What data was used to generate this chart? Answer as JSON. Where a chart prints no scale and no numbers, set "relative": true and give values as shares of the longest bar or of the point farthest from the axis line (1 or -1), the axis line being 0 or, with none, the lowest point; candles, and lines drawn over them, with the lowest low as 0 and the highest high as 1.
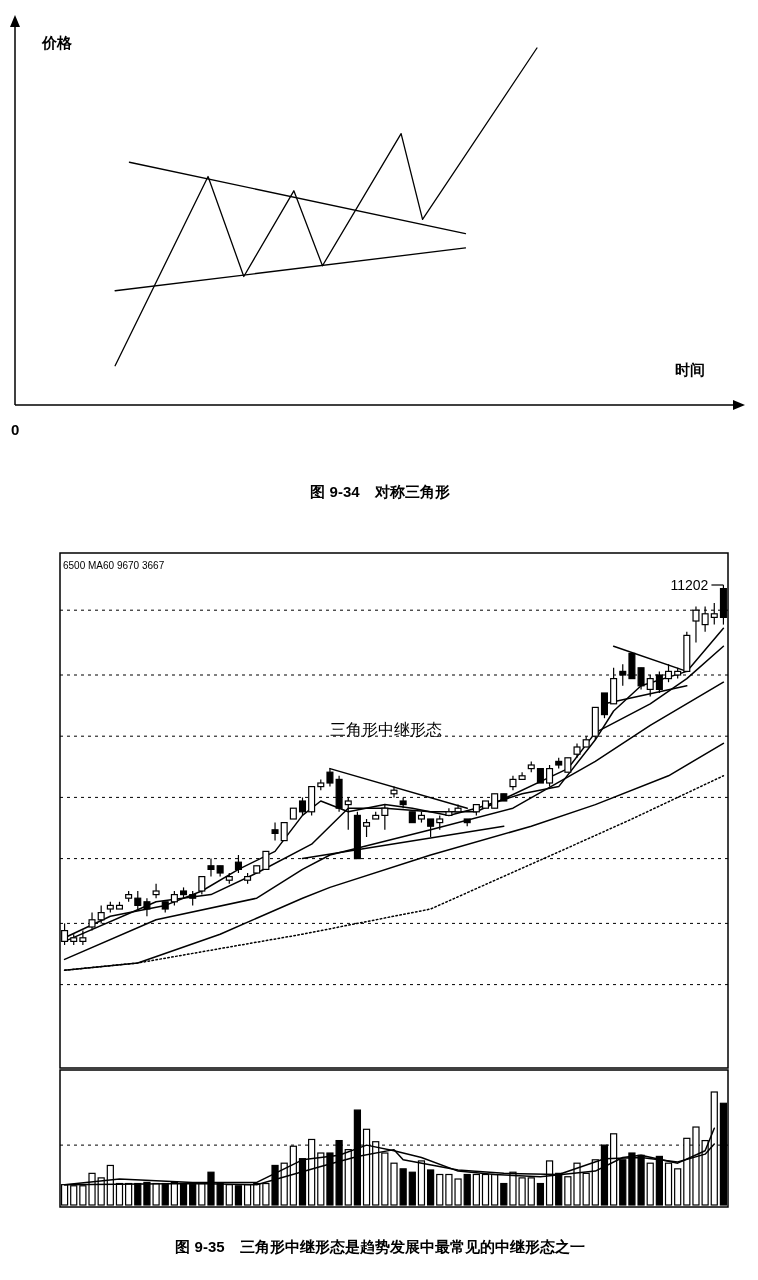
{
  "chart_data": [
    {
      "type": "line",
      "relative": true,
      "title": "图 9-34　对称三角形",
      "xlabel": "时间",
      "ylabel": "价格",
      "annotations": [
        "0"
      ],
      "categories": [
        null,
        null,
        null,
        null,
        null,
        null,
        null,
        null,
        null,
        null,
        null,
        null,
        null,
        null,
        null,
        null,
        null,
        null,
        null,
        null,
        null,
        null,
        null,
        null,
        null,
        null,
        null,
        null,
        null,
        null,
        null,
        null,
        null,
        null,
        null,
        null,
        null,
        null,
        null,
        null,
        null,
        null,
        null,
        null,
        null,
        null,
        null,
        null,
        null,
        null,
        null,
        null,
        null,
        null,
        null,
        null,
        null,
        null,
        null,
        null,
        null,
        null,
        null,
        null,
        null,
        null,
        null,
        null,
        null,
        null,
        null,
        null,
        null,
        null,
        null,
        null,
        null,
        null,
        null,
        null,
        null,
        null,
        null,
        null,
        null,
        null,
        null,
        null,
        null,
        null,
        null,
        null,
        null,
        null,
        null,
        null,
        null,
        null,
        null,
        null,
        null
      ],
      "series": [
        {
          "color": "#000000",
          "values": [
            null,
            null,
            null,
            null,
            null,
            null,
            null,
            null,
            null,
            null,
            null,
            null,
            null,
            null,
            0.11,
            null,
            null,
            null,
            null,
            null,
            null,
            null,
            null,
            null,
            null,
            null,
            null,
            0.64,
            null,
            null,
            null,
            null,
            0.36,
            null,
            null,
            null,
            null,
            null,
            null,
            0.6,
            null,
            null,
            null,
            0.39,
            null,
            null,
            null,
            null,
            null,
            null,
            null,
            null,
            null,
            null,
            0.76,
            null,
            null,
            0.52,
            null,
            null,
            null,
            null,
            null,
            null,
            null,
            null,
            null,
            null,
            null,
            null,
            null,
            null,
            null,
            1,
            null,
            null,
            null,
            null,
            null,
            null,
            null,
            null,
            null,
            null,
            null,
            null,
            null,
            null,
            null,
            null,
            null,
            null,
            null,
            null,
            null,
            null,
            null,
            null,
            null,
            null,
            null
          ]
        },
        {
          "color": "#000000",
          "values": [
            null,
            null,
            null,
            null,
            null,
            null,
            null,
            null,
            null,
            null,
            null,
            null,
            null,
            null,
            null,
            null,
            0.68,
            null,
            null,
            null,
            null,
            null,
            null,
            null,
            null,
            null,
            null,
            null,
            null,
            null,
            null,
            null,
            null,
            null,
            null,
            null,
            null,
            null,
            null,
            null,
            null,
            null,
            null,
            null,
            null,
            null,
            null,
            null,
            null,
            null,
            null,
            null,
            null,
            null,
            null,
            null,
            null,
            null,
            null,
            null,
            null,
            null,
            null,
            0.48,
            null,
            null,
            null,
            null,
            null,
            null,
            null,
            null,
            null,
            null,
            null,
            null,
            null,
            null,
            null,
            null,
            null,
            null,
            null,
            null,
            null,
            null,
            null,
            null,
            null,
            null,
            null,
            null,
            null,
            null,
            null,
            null,
            null,
            null,
            null,
            null,
            null
          ]
        },
        {
          "color": "#000000",
          "values": [
            null,
            null,
            null,
            null,
            null,
            null,
            null,
            null,
            null,
            null,
            null,
            null,
            null,
            null,
            0.32,
            null,
            null,
            null,
            null,
            null,
            null,
            null,
            null,
            null,
            null,
            null,
            null,
            null,
            null,
            null,
            null,
            null,
            null,
            null,
            null,
            null,
            null,
            null,
            null,
            null,
            null,
            null,
            null,
            null,
            null,
            null,
            null,
            null,
            null,
            null,
            null,
            null,
            null,
            null,
            null,
            null,
            null,
            null,
            null,
            null,
            null,
            null,
            null,
            0.44,
            null,
            null,
            null,
            null,
            null,
            null,
            null,
            null,
            null,
            null,
            null,
            null,
            null,
            null,
            null,
            null,
            null,
            null,
            null,
            null,
            null,
            null,
            null,
            null,
            null,
            null,
            null,
            null,
            null,
            null,
            null,
            null,
            null,
            null,
            null,
            null,
            null
          ]
        }
      ]
    },
    {
      "type": "candlestick",
      "relative": true,
      "ref_lines": [
        {
          "axis": "y",
          "value": 0.93,
          "line_style": "dashed",
          "color": "#000000"
        },
        {
          "axis": "y",
          "value": 0.75,
          "line_style": "dashed",
          "color": "#000000"
        },
        {
          "axis": "y",
          "value": 0.58,
          "line_style": "dashed",
          "color": "#000000"
        },
        {
          "axis": "y",
          "value": 0.41,
          "line_style": "dashed",
          "color": "#000000"
        },
        {
          "axis": "y",
          "value": 0.24,
          "line_style": "dashed",
          "color": "#000000"
        },
        {
          "axis": "y",
          "value": 0.06,
          "line_style": "dashed",
          "color": "#000000"
        },
        {
          "axis": "y",
          "value": -0.11,
          "line_style": "dashed",
          "color": "#000000"
        }
      ],
      "annotations": [
        "6500 MA60 9670 3667",
        "三角形中继形态",
        "11202"
      ],
      "categories": [
        null,
        null,
        null,
        null,
        null,
        null,
        null,
        null,
        null,
        null,
        null,
        null,
        null,
        null,
        null,
        null,
        null,
        null,
        null,
        null,
        null,
        null,
        null,
        null,
        null,
        null,
        null,
        null,
        null,
        null,
        null,
        null,
        null,
        null,
        null,
        null,
        null,
        null,
        null,
        null,
        null,
        null,
        null,
        null,
        null,
        null,
        null,
        null,
        null,
        null,
        null,
        null,
        null,
        null,
        null,
        null,
        null,
        null,
        null,
        null,
        null,
        null,
        null,
        null,
        null,
        null,
        null,
        null,
        null,
        null,
        null,
        null,
        null
      ],
      "ohlc": [
        [
          0.01,
          0.06,
          0,
          0.04
        ],
        [
          0.01,
          0.03,
          0,
          0.02
        ],
        [
          0.01,
          0.04,
          0,
          0.02
        ],
        [
          0.05,
          0.09,
          0.04,
          0.07
        ],
        [
          0.07,
          0.11,
          0.06,
          0.09
        ],
        [
          0.1,
          0.12,
          0.09,
          0.11
        ],
        [
          0.1,
          0.12,
          0.1,
          0.11
        ],
        [
          0.13,
          0.15,
          0.12,
          0.14
        ],
        [
          0.13,
          0.15,
          0.1,
          0.11
        ],
        [
          0.12,
          0.13,
          0.08,
          0.1
        ],
        [
          0.14,
          0.17,
          0.13,
          0.15
        ],
        [
          0.12,
          0.12,
          0.09,
          0.1
        ],
        [
          0.12,
          0.15,
          0.11,
          0.14
        ],
        [
          0.15,
          0.16,
          0.13,
          0.14
        ],
        [
          0.14,
          0.15,
          0.11,
          0.13
        ],
        [
          0.15,
          0.19,
          0.14,
          0.19
        ],
        [
          0.22,
          0.24,
          0.19,
          0.21
        ],
        [
          0.22,
          0.22,
          0.19,
          0.2
        ],
        [
          0.18,
          0.2,
          0.17,
          0.19
        ],
        [
          0.23,
          0.25,
          0.2,
          0.21
        ],
        [
          0.18,
          0.2,
          0.17,
          0.19
        ],
        [
          0.2,
          0.22,
          0.2,
          0.22
        ],
        [
          0.21,
          0.26,
          0.21,
          0.26
        ],
        [
          0.32,
          0.34,
          0.29,
          0.31
        ],
        [
          0.29,
          0.34,
          0.29,
          0.34
        ],
        [
          0.35,
          0.38,
          0.35,
          0.38
        ],
        [
          0.4,
          0.41,
          0.36,
          0.37
        ],
        [
          0.37,
          0.44,
          0.36,
          0.44
        ],
        [
          0.44,
          0.46,
          0.43,
          0.45
        ],
        [
          0.48,
          0.49,
          0.44,
          0.45
        ],
        [
          0.46,
          0.47,
          0.37,
          0.38
        ],
        [
          0.39,
          0.41,
          0.32,
          0.4
        ],
        [
          0.36,
          0.37,
          0.24,
          0.24
        ],
        [
          0.33,
          0.35,
          0.3,
          0.34
        ],
        [
          0.35,
          0.37,
          0.35,
          0.36
        ],
        [
          0.36,
          0.39,
          0.32,
          0.38
        ],
        [
          0.42,
          0.44,
          0.41,
          0.43
        ],
        [
          0.4,
          0.41,
          0.38,
          0.39
        ],
        [
          0.37,
          0.37,
          0.34,
          0.34
        ],
        [
          0.35,
          0.37,
          0.34,
          0.36
        ],
        [
          0.35,
          0.35,
          0.3,
          0.33
        ],
        [
          0.34,
          0.36,
          0.32,
          0.35
        ],
        [
          0.36,
          0.38,
          0.36,
          0.37
        ],
        [
          0.37,
          0.39,
          0.37,
          0.38
        ],
        [
          0.35,
          0.35,
          0.33,
          0.34
        ],
        [
          0.37,
          0.39,
          0.36,
          0.39
        ],
        [
          0.38,
          0.4,
          0.38,
          0.4
        ],
        [
          0.38,
          0.42,
          0.38,
          0.42
        ],
        [
          0.42,
          0.42,
          0.4,
          0.4
        ],
        [
          0.44,
          0.47,
          0.43,
          0.46
        ],
        [
          0.46,
          0.48,
          0.46,
          0.47
        ],
        [
          0.49,
          0.51,
          0.48,
          0.5
        ],
        [
          0.49,
          0.49,
          0.45,
          0.45
        ],
        [
          0.45,
          0.5,
          0.44,
          0.49
        ],
        [
          0.51,
          0.52,
          0.49,
          0.5
        ],
        [
          0.48,
          0.52,
          0.48,
          0.52
        ],
        [
          0.53,
          0.56,
          0.52,
          0.55
        ],
        [
          0.55,
          0.58,
          0.55,
          0.57
        ],
        [
          0.58,
          0.66,
          0.57,
          0.66
        ],
        [
          0.7,
          0.7,
          0.63,
          0.64
        ],
        [
          0.67,
          0.77,
          0.67,
          0.74
        ],
        [
          0.76,
          0.78,
          0.72,
          0.75
        ],
        [
          0.81,
          0.81,
          0.74,
          0.74
        ],
        [
          0.77,
          0.77,
          0.71,
          0.72
        ],
        [
          0.71,
          0.75,
          0.69,
          0.74
        ],
        [
          0.75,
          0.76,
          0.7,
          0.71
        ],
        [
          0.74,
          0.78,
          0.73,
          0.76
        ],
        [
          0.75,
          0.77,
          0.74,
          0.76
        ],
        [
          0.76,
          0.87,
          0.76,
          0.86
        ],
        [
          0.9,
          0.94,
          0.84,
          0.93
        ],
        [
          0.89,
          0.94,
          0.87,
          0.92
        ],
        [
          0.91,
          0.95,
          0.89,
          0.92
        ],
        [
          0.99,
          1,
          0.89,
          0.91
        ]
      ],
      "series": [
        {
          "type": "line",
          "color": "#000000",
          "values": [
            0.02,
            null,
            null,
            null,
            null,
            0.08,
            null,
            null,
            null,
            null,
            null,
            0.11,
            null,
            null,
            null,
            0.15,
            null,
            null,
            null,
            0.21,
            null,
            null,
            null,
            0.26,
            null,
            null,
            0.36,
            null,
            0.4,
            null,
            null,
            0.37,
            null,
            null,
            null,
            0.39,
            null,
            null,
            0.38,
            null,
            null,
            null,
            0.36,
            null,
            null,
            0.38,
            null,
            null,
            null,
            null,
            0.42,
            null,
            null,
            null,
            0.44,
            null,
            null,
            null,
            0.57,
            null,
            0.65,
            null,
            null,
            0.72,
            null,
            null,
            null,
            null,
            0.76,
            null,
            null,
            null,
            0.88
          ]
        },
        {
          "type": "line",
          "color": "#000000",
          "values": [
            0.01,
            null,
            null,
            null,
            null,
            null,
            null,
            null,
            null,
            null,
            0.12,
            null,
            null,
            null,
            null,
            null,
            0.14,
            null,
            null,
            null,
            null,
            0.2,
            null,
            null,
            null,
            null,
            null,
            0.28,
            null,
            null,
            null,
            0.38,
            null,
            null,
            null,
            0.38,
            null,
            null,
            null,
            null,
            0.37,
            null,
            null,
            null,
            null,
            0.37,
            null,
            null,
            null,
            null,
            null,
            null,
            null,
            null,
            null,
            0.49,
            null,
            null,
            0.59,
            null,
            null,
            null,
            null,
            null,
            0.67,
            null,
            null,
            null,
            0.74,
            null,
            null,
            null,
            0.83
          ]
        },
        {
          "type": "line",
          "color": "#000000",
          "values": [
            -0.04,
            null,
            null,
            null,
            null,
            null,
            null,
            null,
            null,
            null,
            0.07,
            null,
            null,
            null,
            null,
            null,
            null,
            null,
            null,
            null,
            null,
            0.13,
            null,
            null,
            null,
            null,
            0.21,
            null,
            null,
            0.25,
            null,
            null,
            null,
            null,
            null,
            null,
            null,
            null,
            null,
            null,
            0.32,
            null,
            null,
            null,
            null,
            null,
            null,
            null,
            null,
            0.38,
            null,
            null,
            null,
            null,
            null,
            null,
            null,
            null,
            0.51,
            null,
            null,
            null,
            null,
            null,
            0.61,
            null,
            null,
            null,
            null,
            null,
            null,
            null,
            0.73
          ]
        },
        {
          "type": "line",
          "color": "#000000",
          "values": [
            -0.07,
            null,
            null,
            null,
            null,
            null,
            null,
            null,
            -0.05,
            null,
            null,
            null,
            null,
            null,
            null,
            null,
            null,
            0.03,
            null,
            null,
            null,
            null,
            null,
            null,
            null,
            null,
            0.13,
            null,
            null,
            0.16,
            null,
            null,
            null,
            null,
            null,
            null,
            null,
            null,
            null,
            null,
            0.25,
            null,
            null,
            null,
            null,
            null,
            null,
            null,
            null,
            null,
            null,
            0.33,
            null,
            null,
            null,
            null,
            null,
            null,
            0.39,
            null,
            null,
            null,
            null,
            null,
            null,
            null,
            0.47,
            null,
            null,
            null,
            null,
            null,
            0.56
          ]
        },
        {
          "type": "line",
          "color": "#000000",
          "line_style": "dotted",
          "values": [
            -0.07,
            null,
            null,
            null,
            null,
            null,
            null,
            null,
            -0.05,
            null,
            null,
            null,
            null,
            null,
            null,
            null,
            null,
            -0.01,
            null,
            null,
            null,
            null,
            null,
            null,
            null,
            null,
            0.03,
            null,
            null,
            null,
            null,
            null,
            null,
            null,
            null,
            null,
            null,
            null,
            null,
            null,
            0.1,
            null,
            null,
            null,
            null,
            null,
            null,
            null,
            null,
            null,
            null,
            null,
            null,
            null,
            null,
            0.27,
            null,
            null,
            null,
            null,
            null,
            null,
            0.35,
            null,
            null,
            null,
            null,
            null,
            null,
            null,
            null,
            null,
            0.47
          ]
        },
        {
          "type": "line",
          "color": "#000000",
          "values": [
            null,
            null,
            null,
            null,
            null,
            null,
            null,
            null,
            null,
            null,
            null,
            null,
            null,
            null,
            null,
            null,
            null,
            null,
            null,
            null,
            null,
            null,
            null,
            null,
            null,
            null,
            null,
            null,
            null,
            0.49,
            null,
            null,
            null,
            null,
            null,
            null,
            null,
            null,
            null,
            null,
            null,
            null,
            null,
            null,
            0.38,
            null,
            null,
            null,
            null,
            null,
            null,
            null,
            null,
            null,
            null,
            null,
            null,
            null,
            null,
            null,
            null,
            null,
            null,
            null,
            null,
            null,
            null,
            null,
            null,
            null,
            null,
            null,
            null
          ]
        },
        {
          "type": "line",
          "color": "#000000",
          "values": [
            null,
            null,
            null,
            null,
            null,
            null,
            null,
            null,
            null,
            null,
            null,
            null,
            null,
            null,
            null,
            null,
            null,
            null,
            null,
            null,
            null,
            null,
            null,
            null,
            null,
            null,
            0.24,
            null,
            null,
            null,
            null,
            null,
            null,
            null,
            null,
            null,
            null,
            null,
            null,
            null,
            null,
            null,
            null,
            null,
            null,
            null,
            null,
            null,
            0.33,
            null,
            null,
            null,
            null,
            null,
            null,
            null,
            null,
            null,
            null,
            null,
            null,
            null,
            null,
            null,
            null,
            null,
            null,
            null,
            null,
            null,
            null,
            null,
            null
          ]
        },
        {
          "type": "line",
          "color": "#000000",
          "values": [
            null,
            null,
            null,
            null,
            null,
            null,
            null,
            null,
            null,
            null,
            null,
            null,
            null,
            null,
            null,
            null,
            null,
            null,
            null,
            null,
            null,
            null,
            null,
            null,
            null,
            null,
            null,
            null,
            null,
            null,
            null,
            null,
            null,
            null,
            null,
            null,
            null,
            null,
            null,
            null,
            null,
            null,
            null,
            null,
            null,
            null,
            null,
            null,
            null,
            null,
            null,
            null,
            null,
            null,
            null,
            null,
            null,
            null,
            null,
            null,
            0.83,
            null,
            null,
            null,
            null,
            null,
            null,
            null,
            0.76,
            null,
            null,
            null,
            null
          ]
        },
        {
          "type": "line",
          "color": "#000000",
          "values": [
            null,
            null,
            null,
            null,
            null,
            null,
            null,
            null,
            null,
            null,
            null,
            null,
            null,
            null,
            null,
            null,
            null,
            null,
            null,
            null,
            null,
            null,
            null,
            null,
            null,
            null,
            null,
            null,
            null,
            null,
            null,
            null,
            null,
            null,
            null,
            null,
            null,
            null,
            null,
            null,
            null,
            null,
            null,
            null,
            null,
            null,
            null,
            null,
            null,
            null,
            null,
            null,
            null,
            null,
            null,
            null,
            null,
            null,
            null,
            0.67,
            null,
            null,
            null,
            null,
            null,
            null,
            null,
            null,
            0.72,
            null,
            null,
            null,
            null
          ]
        }
      ]
    },
    {
      "type": "bar",
      "relative": true,
      "ref_lines": [
        {
          "axis": "y",
          "value": 0.53,
          "line_style": "dashed",
          "color": "#000000"
        }
      ],
      "title": "图 9-35　三角形中继形态是趋势发展中最常见的中继形态之一",
      "categories": [
        null,
        null,
        null,
        null,
        null,
        null,
        null,
        null,
        null,
        null,
        null,
        null,
        null,
        null,
        null,
        null,
        null,
        null,
        null,
        null,
        null,
        null,
        null,
        null,
        null,
        null,
        null,
        null,
        null,
        null,
        null,
        null,
        null,
        null,
        null,
        null,
        null,
        null,
        null,
        null,
        null,
        null,
        null,
        null,
        null,
        null,
        null,
        null,
        null,
        null,
        null,
        null,
        null,
        null,
        null,
        null,
        null,
        null,
        null,
        null,
        null,
        null,
        null,
        null,
        null,
        null,
        null,
        null,
        null,
        null,
        null,
        null,
        null
      ],
      "values": [
        0.18,
        0.17,
        0.17,
        0.28,
        0.24,
        0.35,
        0.19,
        0.19,
        0.19,
        0.2,
        0.19,
        0.19,
        0.2,
        0.19,
        0.18,
        0.19,
        0.29,
        0.19,
        0.18,
        0.17,
        0.18,
        0.19,
        0.19,
        0.35,
        0.37,
        0.52,
        0.41,
        0.58,
        0.46,
        0.46,
        0.57,
        0.49,
        0.84,
        0.67,
        0.56,
        0.46,
        0.37,
        0.32,
        0.29,
        0.39,
        0.31,
        0.27,
        0.27,
        0.23,
        0.27,
        0.27,
        0.27,
        0.27,
        0.19,
        0.29,
        0.24,
        0.24,
        0.19,
        0.39,
        0.28,
        0.25,
        0.37,
        0.28,
        0.4,
        0.53,
        0.63,
        0.4,
        0.46,
        0.44,
        0.37,
        0.43,
        0.37,
        0.32,
        0.59,
        0.69,
        0.57,
        1,
        0.9
      ],
      "colors": [
        "#ffffff",
        "#ffffff",
        "#ffffff",
        "#ffffff",
        "#ffffff",
        "#ffffff",
        "#ffffff",
        "#ffffff",
        "#000000",
        "#000000",
        "#ffffff",
        "#000000",
        "#ffffff",
        "#000000",
        "#000000",
        "#ffffff",
        "#000000",
        "#000000",
        "#ffffff",
        "#000000",
        "#ffffff",
        "#ffffff",
        "#ffffff",
        "#000000",
        "#ffffff",
        "#ffffff",
        "#000000",
        "#ffffff",
        "#ffffff",
        "#000000",
        "#000000",
        "#ffffff",
        "#000000",
        "#ffffff",
        "#ffffff",
        "#ffffff",
        "#ffffff",
        "#000000",
        "#000000",
        "#ffffff",
        "#000000",
        "#ffffff",
        "#ffffff",
        "#ffffff",
        "#000000",
        "#ffffff",
        "#ffffff",
        "#ffffff",
        "#000000",
        "#ffffff",
        "#ffffff",
        "#ffffff",
        "#000000",
        "#ffffff",
        "#000000",
        "#ffffff",
        "#ffffff",
        "#ffffff",
        "#ffffff",
        "#000000",
        "#ffffff",
        "#000000",
        "#000000",
        "#000000",
        "#ffffff",
        "#000000",
        "#ffffff",
        "#ffffff",
        "#ffffff",
        "#ffffff",
        "#ffffff",
        "#ffffff",
        "#000000"
      ],
      "series": [
        {
          "type": "line",
          "color": "#000000",
          "values": [
            0.18,
            null,
            null,
            null,
            null,
            null,
            0.23,
            null,
            null,
            null,
            null,
            null,
            null,
            null,
            0.2,
            null,
            null,
            null,
            null,
            null,
            null,
            0.2,
            null,
            null,
            null,
            null,
            0.4,
            null,
            null,
            null,
            0.44,
            null,
            null,
            0.53,
            null,
            null,
            0.48,
            null,
            null,
            0.42,
            null,
            null,
            null,
            0.3,
            null,
            null,
            null,
            0.27,
            null,
            null,
            null,
            null,
            0.25,
            null,
            null,
            null,
            null,
            null,
            0.3,
            null,
            null,
            0.42,
            null,
            0.44,
            null,
            null,
            null,
            0.37,
            null,
            null,
            0.48,
            0.68,
            null
          ]
        },
        {
          "type": "line",
          "color": "#000000",
          "values": [
            0.18,
            null,
            null,
            null,
            null,
            null,
            null,
            null,
            null,
            null,
            null,
            null,
            null,
            null,
            0.19,
            null,
            null,
            null,
            null,
            null,
            null,
            0.18,
            null,
            null,
            null,
            null,
            null,
            null,
            0.34,
            null,
            null,
            null,
            0.43,
            null,
            null,
            null,
            0.49,
            0.4,
            null,
            null,
            null,
            null,
            null,
            0.31,
            null,
            null,
            null,
            null,
            0.28,
            null,
            null,
            null,
            null,
            null,
            0.27,
            null,
            null,
            null,
            null,
            0.41,
            null,
            null,
            null,
            0.42,
            null,
            null,
            null,
            0.38,
            null,
            null,
            0.45,
            0.54,
            null
          ]
        }
      ]
    }
  ]
}
